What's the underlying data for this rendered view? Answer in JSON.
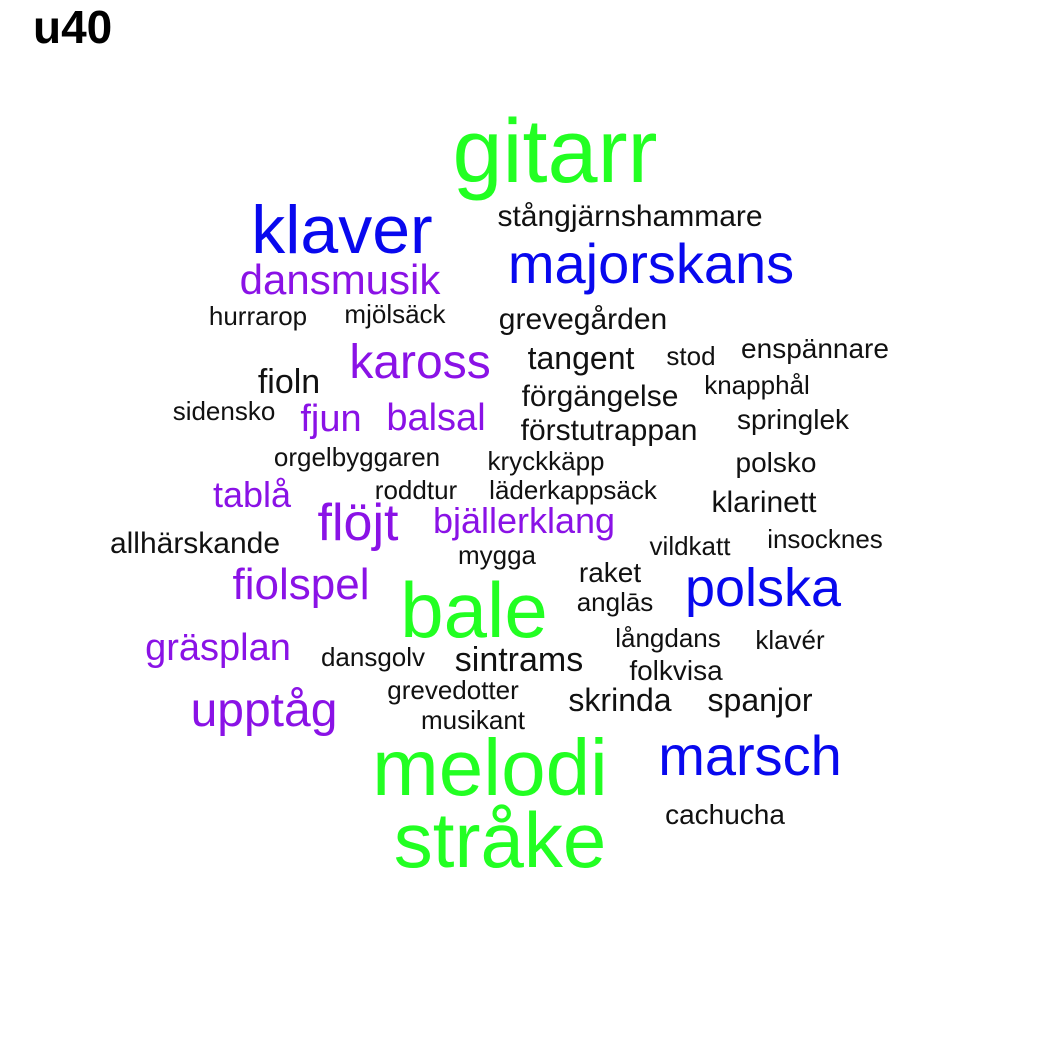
{
  "title": "u40",
  "colors": {
    "green": "#22ff22",
    "blue": "#0808ee",
    "purple": "#8a12e6",
    "black": "#111111"
  },
  "words": [
    {
      "text": "gitarr",
      "color": "green"
    },
    {
      "text": "klaver",
      "color": "blue"
    },
    {
      "text": "stångjärnshammare",
      "color": "black"
    },
    {
      "text": "majorskans",
      "color": "blue"
    },
    {
      "text": "dansmusik",
      "color": "purple"
    },
    {
      "text": "hurrarop",
      "color": "black"
    },
    {
      "text": "mjölsäck",
      "color": "black"
    },
    {
      "text": "grevegården",
      "color": "black"
    },
    {
      "text": "kaross",
      "color": "purple"
    },
    {
      "text": "tangent",
      "color": "black"
    },
    {
      "text": "stod",
      "color": "black"
    },
    {
      "text": "enspännare",
      "color": "black"
    },
    {
      "text": "fioln",
      "color": "black"
    },
    {
      "text": "knapphål",
      "color": "black"
    },
    {
      "text": "förgängelse",
      "color": "black"
    },
    {
      "text": "sidensko",
      "color": "black"
    },
    {
      "text": "fjun",
      "color": "purple"
    },
    {
      "text": "balsal",
      "color": "purple"
    },
    {
      "text": "förstutrappan",
      "color": "black"
    },
    {
      "text": "springlek",
      "color": "black"
    },
    {
      "text": "orgelbyggaren",
      "color": "black"
    },
    {
      "text": "kryckkäpp",
      "color": "black"
    },
    {
      "text": "polsko",
      "color": "black"
    },
    {
      "text": "tablå",
      "color": "purple"
    },
    {
      "text": "roddtur",
      "color": "black"
    },
    {
      "text": "läderkappsäck",
      "color": "black"
    },
    {
      "text": "klarinett",
      "color": "black"
    },
    {
      "text": "flöjt",
      "color": "purple"
    },
    {
      "text": "bjällerklang",
      "color": "purple"
    },
    {
      "text": "allhärskande",
      "color": "black"
    },
    {
      "text": "vildkatt",
      "color": "black"
    },
    {
      "text": "insocknes",
      "color": "black"
    },
    {
      "text": "mygga",
      "color": "black"
    },
    {
      "text": "raket",
      "color": "black"
    },
    {
      "text": "fiolspel",
      "color": "purple"
    },
    {
      "text": "bale",
      "color": "green"
    },
    {
      "text": "polska",
      "color": "blue"
    },
    {
      "text": "anglās",
      "color": "black"
    },
    {
      "text": "långdans",
      "color": "black"
    },
    {
      "text": "klavér",
      "color": "black"
    },
    {
      "text": "gräsplan",
      "color": "purple"
    },
    {
      "text": "dansgolv",
      "color": "black"
    },
    {
      "text": "sintrams",
      "color": "black"
    },
    {
      "text": "folkvisa",
      "color": "black"
    },
    {
      "text": "grevedotter",
      "color": "black"
    },
    {
      "text": "skrinda",
      "color": "black"
    },
    {
      "text": "spanjor",
      "color": "black"
    },
    {
      "text": "upptåg",
      "color": "purple"
    },
    {
      "text": "musikant",
      "color": "black"
    },
    {
      "text": "melodi",
      "color": "green"
    },
    {
      "text": "marsch",
      "color": "blue"
    },
    {
      "text": "cachucha",
      "color": "black"
    },
    {
      "text": "stråke",
      "color": "green"
    }
  ]
}
